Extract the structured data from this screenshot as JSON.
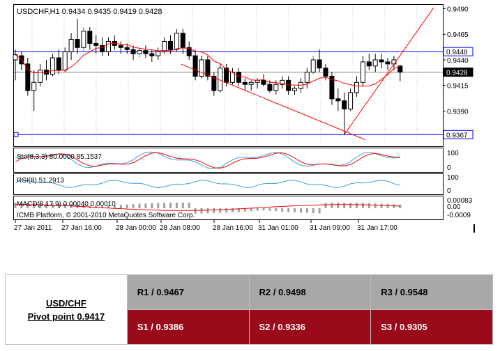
{
  "chart_data": {
    "type": "candlestick",
    "symbol_header": "USDCHF,H1  0.9434 0.9435 0.9419 0.9428",
    "copyright": "ICMB Platform, © 2001-2010 MetaQuotes Software Corp.",
    "ylim": [
      0.9357,
      0.9493
    ],
    "price_ticks": [
      "0.9490",
      "0.9465",
      "0.9440",
      "0.9415",
      "0.9390"
    ],
    "hlines": [
      {
        "value": 0.9448,
        "label": "0.9448",
        "color": "#0000ff"
      },
      {
        "value": 0.9428,
        "label": "0.9428",
        "color": "#808080"
      },
      {
        "value": 0.9367,
        "label": "0.9367",
        "color": "#0000ff"
      }
    ],
    "x_labels": [
      "27 Jan 2011",
      "27 Jan 16:00",
      "28 Jan 00:00",
      "28 Jan 08:00",
      "28 Jan 16:00",
      "31 Jan 01:00",
      "31 Jan 09:00",
      "31 Jan 17:00"
    ],
    "candles": [
      [
        0.944,
        0.945,
        0.942,
        0.9445
      ],
      [
        0.9444,
        0.9448,
        0.943,
        0.9436
      ],
      [
        0.9436,
        0.9442,
        0.9405,
        0.941
      ],
      [
        0.941,
        0.943,
        0.939,
        0.9418
      ],
      [
        0.9418,
        0.9436,
        0.9414,
        0.943
      ],
      [
        0.943,
        0.944,
        0.942,
        0.9426
      ],
      [
        0.9426,
        0.9446,
        0.9424,
        0.9442
      ],
      [
        0.9442,
        0.945,
        0.9426,
        0.943
      ],
      [
        0.943,
        0.9452,
        0.9428,
        0.9448
      ],
      [
        0.9448,
        0.9466,
        0.944,
        0.946
      ],
      [
        0.946,
        0.948,
        0.9446,
        0.9452
      ],
      [
        0.9452,
        0.9472,
        0.9448,
        0.9468
      ],
      [
        0.9468,
        0.9472,
        0.945,
        0.9456
      ],
      [
        0.9456,
        0.9464,
        0.9446,
        0.9454
      ],
      [
        0.9454,
        0.9462,
        0.9444,
        0.9448
      ],
      [
        0.9448,
        0.9462,
        0.9444,
        0.9458
      ],
      [
        0.9458,
        0.9464,
        0.945,
        0.9454
      ],
      [
        0.9454,
        0.9458,
        0.9446,
        0.9452
      ],
      [
        0.9452,
        0.9456,
        0.9446,
        0.945
      ],
      [
        0.945,
        0.9454,
        0.944,
        0.9446
      ],
      [
        0.9446,
        0.9452,
        0.9442,
        0.9449
      ],
      [
        0.9449,
        0.9454,
        0.9442,
        0.9446
      ],
      [
        0.9446,
        0.945,
        0.9438,
        0.9444
      ],
      [
        0.9444,
        0.9452,
        0.944,
        0.9448
      ],
      [
        0.9448,
        0.9462,
        0.9446,
        0.9458
      ],
      [
        0.9458,
        0.9464,
        0.9446,
        0.945
      ],
      [
        0.945,
        0.947,
        0.9448,
        0.9466
      ],
      [
        0.9466,
        0.947,
        0.9446,
        0.9452
      ],
      [
        0.9452,
        0.9458,
        0.944,
        0.9444
      ],
      [
        0.9444,
        0.945,
        0.942,
        0.9424
      ],
      [
        0.9424,
        0.9444,
        0.9422,
        0.944
      ],
      [
        0.944,
        0.9444,
        0.942,
        0.9424
      ],
      [
        0.9424,
        0.9428,
        0.9405,
        0.941
      ],
      [
        0.941,
        0.9436,
        0.9408,
        0.9432
      ],
      [
        0.9432,
        0.9436,
        0.9414,
        0.9418
      ],
      [
        0.9418,
        0.9432,
        0.9416,
        0.9428
      ],
      [
        0.9428,
        0.9432,
        0.9414,
        0.9418
      ],
      [
        0.9418,
        0.9422,
        0.941,
        0.9416
      ],
      [
        0.9416,
        0.942,
        0.941,
        0.9418
      ],
      [
        0.9418,
        0.9422,
        0.9412,
        0.942
      ],
      [
        0.942,
        0.9426,
        0.9414,
        0.9416
      ],
      [
        0.9416,
        0.942,
        0.9408,
        0.941
      ],
      [
        0.941,
        0.942,
        0.9406,
        0.9416
      ],
      [
        0.9416,
        0.9424,
        0.9412,
        0.942
      ],
      [
        0.942,
        0.9424,
        0.9406,
        0.941
      ],
      [
        0.941,
        0.9414,
        0.9406,
        0.9412
      ],
      [
        0.9412,
        0.9422,
        0.9408,
        0.9418
      ],
      [
        0.9418,
        0.9432,
        0.9412,
        0.9428
      ],
      [
        0.9428,
        0.9444,
        0.9426,
        0.944
      ],
      [
        0.944,
        0.945,
        0.9428,
        0.9432
      ],
      [
        0.9432,
        0.9436,
        0.942,
        0.9424
      ],
      [
        0.9424,
        0.9428,
        0.9396,
        0.9402
      ],
      [
        0.9402,
        0.9412,
        0.939,
        0.94
      ],
      [
        0.94,
        0.9408,
        0.9367,
        0.9392
      ],
      [
        0.9392,
        0.9412,
        0.939,
        0.9408
      ],
      [
        0.9408,
        0.9424,
        0.9404,
        0.9418
      ],
      [
        0.9418,
        0.9444,
        0.9414,
        0.9438
      ],
      [
        0.9438,
        0.9446,
        0.943,
        0.9434
      ],
      [
        0.9434,
        0.9446,
        0.9428,
        0.944
      ],
      [
        0.944,
        0.9446,
        0.9432,
        0.9438
      ],
      [
        0.9438,
        0.9442,
        0.943,
        0.9436
      ],
      [
        0.9436,
        0.9444,
        0.943,
        0.944
      ],
      [
        0.9434,
        0.9435,
        0.9419,
        0.9428
      ]
    ],
    "bull_color": "#ffffff",
    "bear_color": "#000000",
    "ma_color": "#ff0000",
    "indicators": [
      {
        "name": "Sto",
        "label": "Sto(8,3,3) 80.0000 85.1537",
        "ticks": [
          "100",
          "0"
        ]
      },
      {
        "name": "RSI",
        "label": "RSI(8) 51.2913",
        "ticks": [
          "100",
          "0"
        ]
      },
      {
        "name": "MACD",
        "label": "MACD(8,17,9) 0.00040 0.00010",
        "ticks": [
          "0.00083",
          "0.00",
          "-0.0009"
        ]
      }
    ]
  },
  "pivot_table": {
    "title": "USD/CHF",
    "pivot": "Pivot point 0.9417",
    "resistance": [
      "R1 / 0.9467",
      "R2 / 0.9498",
      "R3 / 0.9548"
    ],
    "support": [
      "S1 / 0.9386",
      "S2 / 0.9336",
      "S3 / 0.9305"
    ]
  }
}
